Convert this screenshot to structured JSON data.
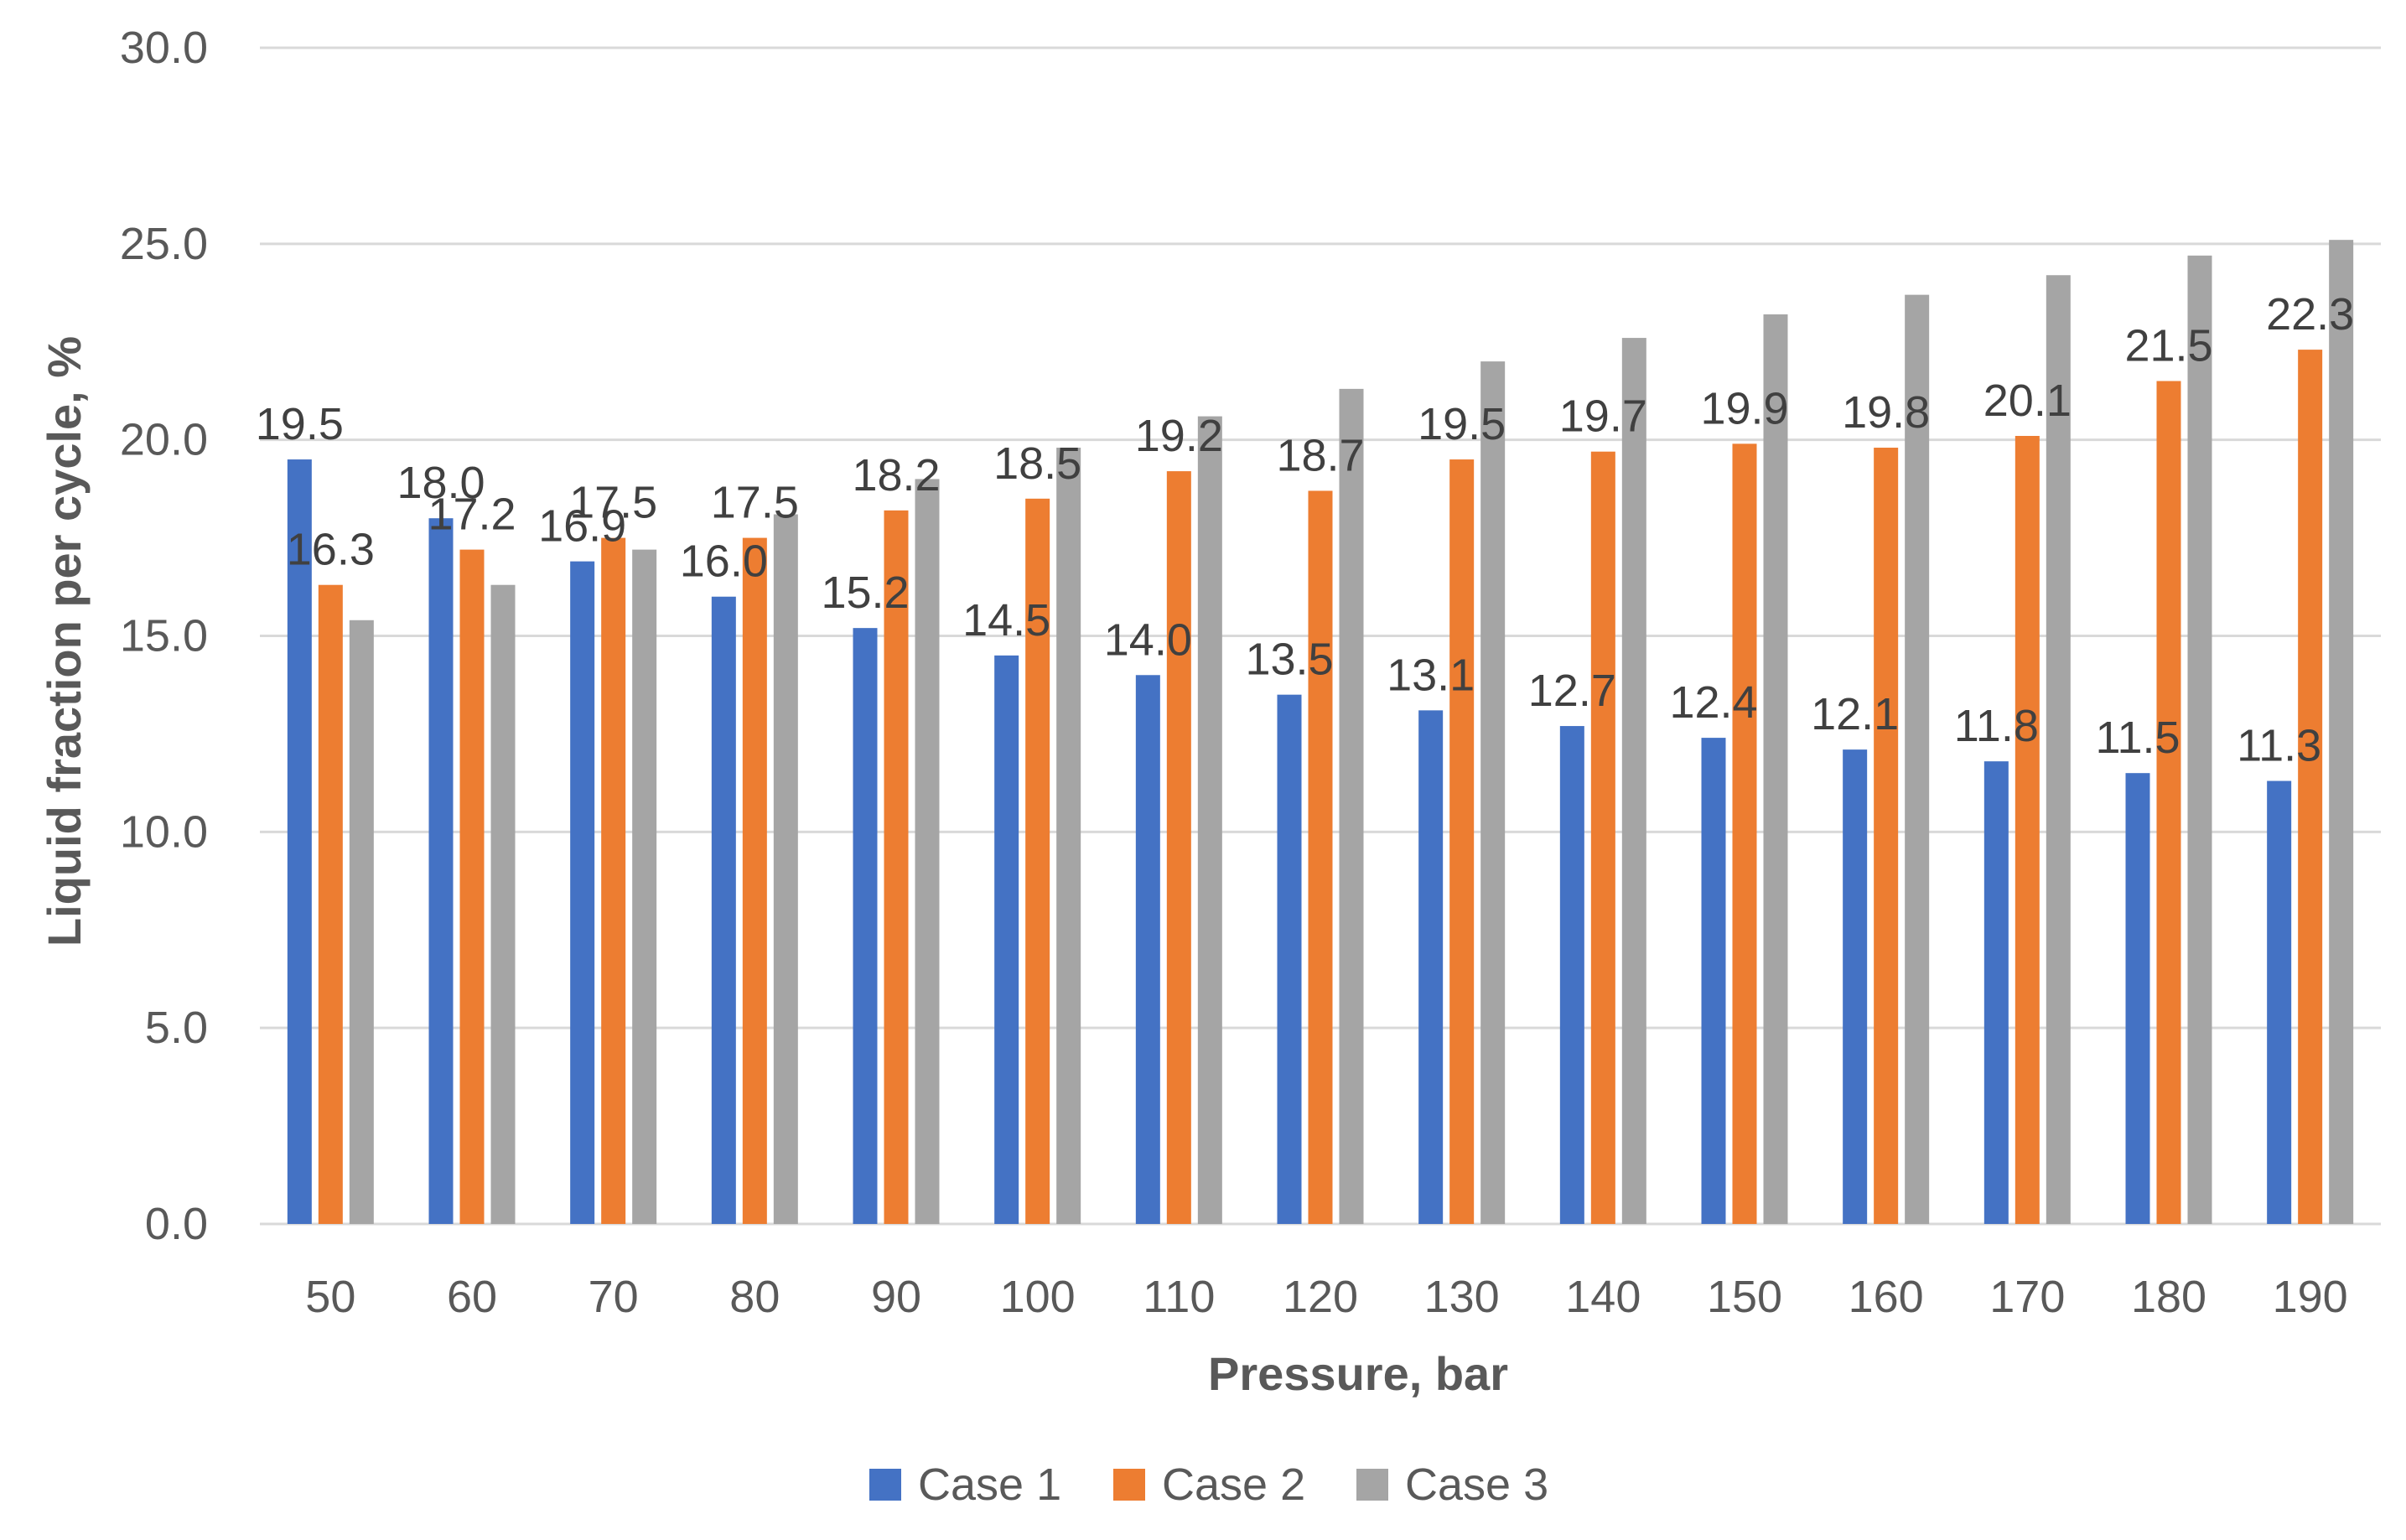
{
  "chart_data": {
    "type": "bar",
    "title": "",
    "xlabel": "Pressure, bar",
    "ylabel": "Liquid fraction per cycle, %",
    "ylim": [
      0,
      30
    ],
    "ytick_step": 5,
    "ytick_labels": [
      "0.0",
      "5.0",
      "10.0",
      "15.0",
      "20.0",
      "25.0",
      "30.0"
    ],
    "grid": true,
    "legend_position": "bottom",
    "categories": [
      "50",
      "60",
      "70",
      "80",
      "90",
      "100",
      "110",
      "120",
      "130",
      "140",
      "150",
      "160",
      "170",
      "180",
      "190"
    ],
    "series": [
      {
        "name": "Case 1",
        "color": "#4472C4",
        "show_labels": true,
        "values": [
          19.5,
          18.0,
          16.9,
          16.0,
          15.2,
          14.5,
          14.0,
          13.5,
          13.1,
          12.7,
          12.4,
          12.1,
          11.8,
          11.5,
          11.3
        ],
        "labels": [
          "19.5",
          "18.0",
          "16.9",
          "16.0",
          "15.2",
          "14.5",
          "14.0",
          "13.5",
          "13.1",
          "12.7",
          "12.4",
          "12.1",
          "11.8",
          "11.5",
          "11.3"
        ]
      },
      {
        "name": "Case 2",
        "color": "#ED7D31",
        "show_labels": true,
        "values": [
          16.3,
          17.2,
          17.5,
          17.5,
          18.2,
          18.5,
          19.2,
          18.7,
          19.5,
          19.7,
          19.9,
          19.8,
          20.1,
          21.5,
          22.3
        ],
        "labels": [
          "16.3",
          "17.2",
          "17.5",
          "17.5",
          "18.2",
          "18.5",
          "19.2",
          "18.7",
          "19.5",
          "19.7",
          "19.9",
          "19.8",
          "20.1",
          "21.5",
          "22.3"
        ]
      },
      {
        "name": "Case 3",
        "color": "#A5A5A5",
        "show_labels": false,
        "values": [
          15.4,
          16.3,
          17.2,
          18.1,
          19.0,
          19.8,
          20.6,
          21.3,
          22.0,
          22.6,
          23.2,
          23.7,
          24.2,
          24.7,
          25.1
        ]
      }
    ]
  }
}
